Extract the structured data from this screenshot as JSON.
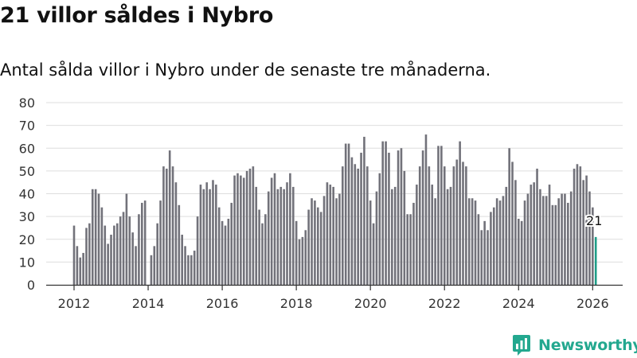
{
  "title": "21 villor såldes i Nybro",
  "subtitle": "Antal sålda villor i Nybro under de senaste tre månaderna.",
  "brand": {
    "name": "Newsworthy",
    "color": "#23a88f",
    "icon": "newsworthy-logo-icon"
  },
  "colors": {
    "bar": "#72727a",
    "highlight": "#1f9e88",
    "grid": "#dedede",
    "axis": "#333333"
  },
  "chart_data": {
    "type": "bar",
    "title": "21 villor såldes i Nybro",
    "subtitle": "Antal sålda villor i Nybro under de senaste tre månaderna.",
    "xlabel": "",
    "ylabel": "",
    "ylim": [
      0,
      80
    ],
    "yticks": [
      "0",
      "10",
      "20",
      "30",
      "40",
      "50",
      "60",
      "70",
      "80"
    ],
    "xticks": [
      "2012",
      "2014",
      "2016",
      "2018",
      "2020",
      "2022",
      "2024",
      "2026"
    ],
    "grid": true,
    "start": "2012-01",
    "frequency": "monthly",
    "highlight_label": "21",
    "values": [
      26,
      17,
      12,
      14,
      25,
      27,
      42,
      42,
      40,
      34,
      26,
      18,
      22,
      26,
      27,
      30,
      32,
      40,
      30,
      23,
      17,
      31,
      36,
      37,
      null,
      13,
      17,
      27,
      37,
      52,
      51,
      59,
      52,
      45,
      35,
      22,
      17,
      13,
      13,
      15,
      30,
      44,
      42,
      45,
      42,
      46,
      44,
      34,
      28,
      26,
      29,
      36,
      48,
      49,
      48,
      47,
      50,
      51,
      52,
      43,
      33,
      27,
      31,
      41,
      47,
      49,
      42,
      43,
      42,
      45,
      49,
      43,
      28,
      20,
      21,
      24,
      33,
      38,
      37,
      34,
      32,
      39,
      45,
      44,
      43,
      38,
      40,
      52,
      62,
      62,
      56,
      53,
      51,
      58,
      65,
      52,
      37,
      27,
      41,
      49,
      63,
      63,
      58,
      42,
      43,
      59,
      60,
      50,
      31,
      31,
      36,
      44,
      52,
      59,
      66,
      52,
      44,
      38,
      61,
      61,
      52,
      42,
      43,
      52,
      55,
      63,
      54,
      52,
      38,
      38,
      37,
      31,
      24,
      28,
      24,
      32,
      34,
      38,
      37,
      39,
      43,
      60,
      54,
      46,
      29,
      28,
      37,
      40,
      44,
      45,
      51,
      42,
      39,
      39,
      44,
      35,
      35,
      38,
      40,
      40,
      36,
      41,
      51,
      53,
      52,
      46,
      48,
      41,
      34,
      21
    ]
  }
}
